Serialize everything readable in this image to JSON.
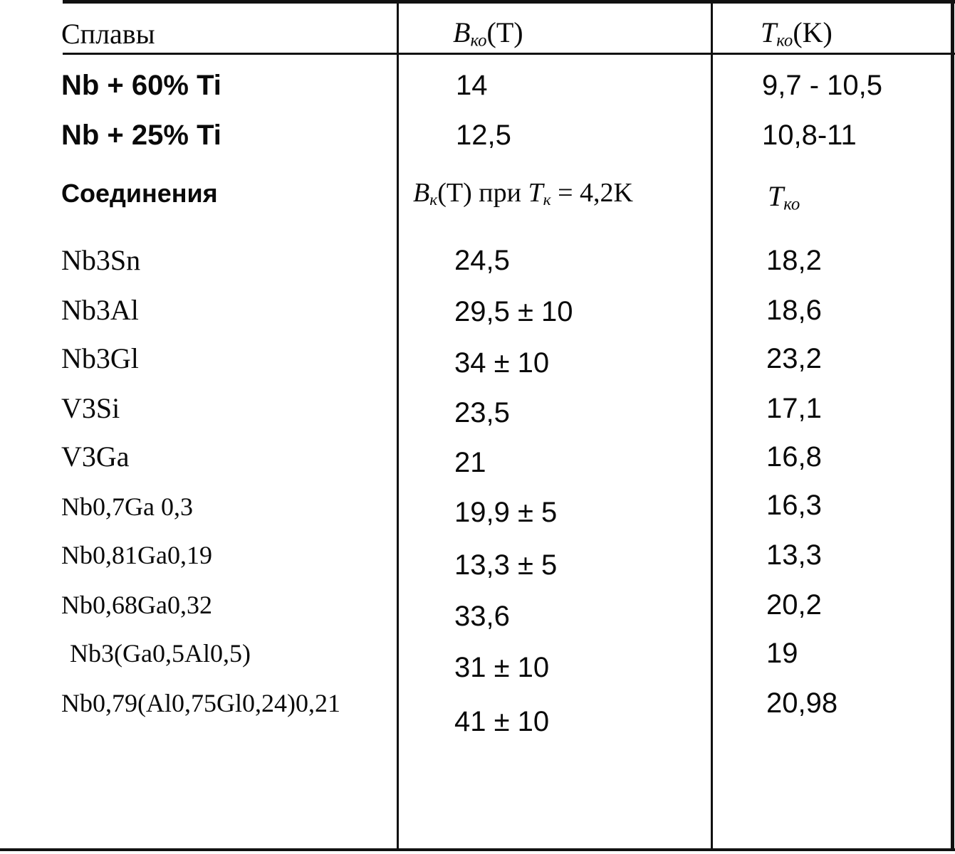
{
  "header": {
    "col1": "Сплавы",
    "col2_main": "B",
    "col2_sub": "ко",
    "col2_unit": "(T)",
    "col3_main": "T",
    "col3_sub": "ко",
    "col3_unit": "(K)"
  },
  "alloys": [
    {
      "name": "Nb + 60% Ti",
      "b": "14",
      "t": "9,7 - 10,5"
    },
    {
      "name": "Nb + 25% Ti",
      "b": "12,5",
      "t": "10,8-11"
    }
  ],
  "subheader": {
    "col1": "Соединения",
    "col2_main": "B",
    "col2_sub": "к",
    "col2_mid": "(T) при ",
    "col2_t": "T",
    "col2_tsub": "к",
    "col2_val": " = 4,2K",
    "col3_main": "T",
    "col3_sub": "ко"
  },
  "compounds": [
    {
      "name": "Nb3Sn",
      "b": "24,5",
      "t": "18,2"
    },
    {
      "name": "Nb3Al",
      "b": "29,5 ± 10",
      "t": "18,6"
    },
    {
      "name": "Nb3Gl",
      "b": "34 ± 10",
      "t": "23,2"
    },
    {
      "name": "V3Si",
      "b": "23,5",
      "t": "17,1"
    },
    {
      "name": "V3Ga",
      "b": "21",
      "t": "16,8"
    },
    {
      "name": "Nb0,7Ga 0,3",
      "b": "19,9 ± 5",
      "t": "16,3"
    },
    {
      "name": "Nb0,81Ga0,19",
      "b": "13,3 ± 5",
      "t": "13,3"
    },
    {
      "name": "Nb0,68Ga0,32",
      "b": "33,6",
      "t": "20,2"
    },
    {
      "name": "Nb3(Ga0,5Al0,5)",
      "b": "31 ± 10",
      "t": "19"
    },
    {
      "name": "Nb0,79(Al0,75Gl0,24)0,21",
      "b": "41 ± 10",
      "t": "20,98"
    }
  ]
}
